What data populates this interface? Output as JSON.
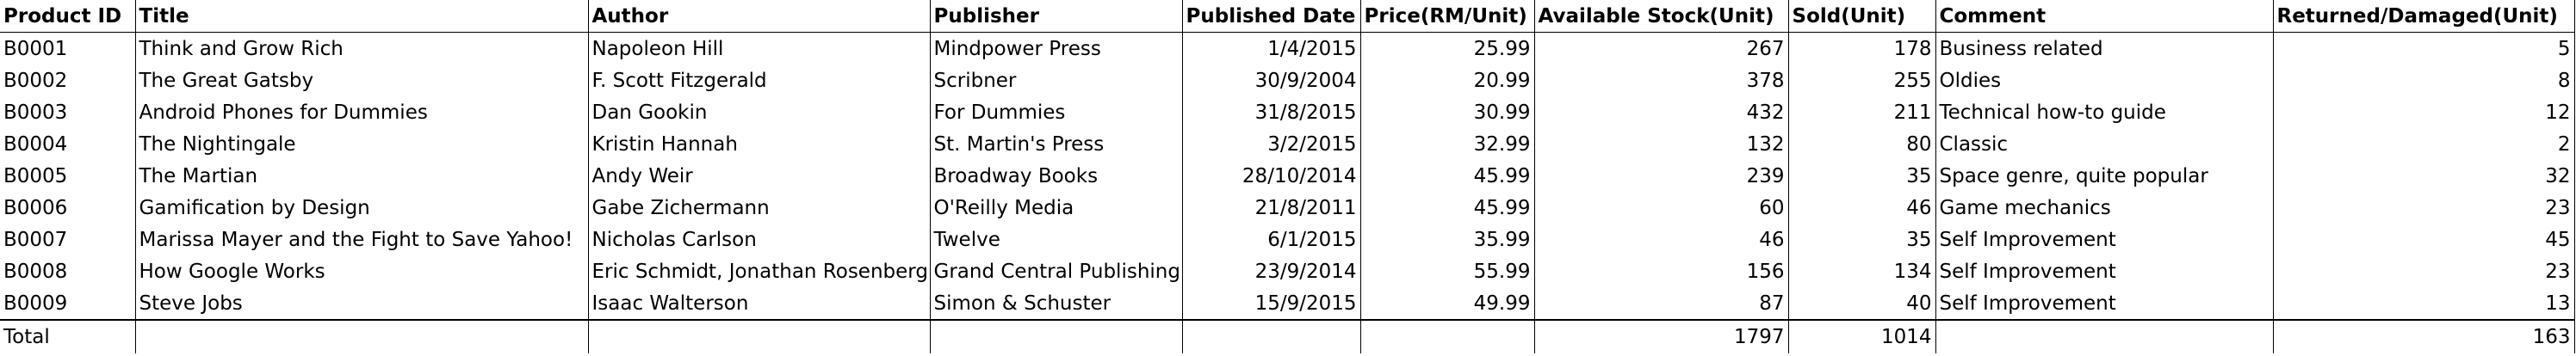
{
  "sheet": {
    "headers": [
      "Product ID",
      "Title",
      "Author",
      "Publisher",
      "Published Date",
      "Price(RM/Unit)",
      "Available Stock(Unit)",
      "Sold(Unit)",
      "Comment",
      "Returned/Damaged(Unit)"
    ],
    "rows": [
      [
        "B0001",
        "Think and Grow Rich",
        "Napoleon Hill",
        "Mindpower Press",
        "1/4/2015",
        "25.99",
        "267",
        "178",
        "Business related",
        "5"
      ],
      [
        "B0002",
        "The Great Gatsby",
        "F. Scott Fitzgerald",
        "Scribner",
        "30/9/2004",
        "20.99",
        "378",
        "255",
        "Oldies",
        "8"
      ],
      [
        "B0003",
        "Android Phones for Dummies",
        "Dan Gookin",
        "For Dummies",
        "31/8/2015",
        "30.99",
        "432",
        "211",
        "Technical how-to guide",
        "12"
      ],
      [
        "B0004",
        "The Nightingale",
        "Kristin Hannah",
        "St. Martin's Press",
        "3/2/2015",
        "32.99",
        "132",
        "80",
        "Classic",
        "2"
      ],
      [
        "B0005",
        "The Martian",
        "Andy Weir",
        "Broadway Books",
        "28/10/2014",
        "45.99",
        "239",
        "35",
        "Space genre, quite popular",
        "32"
      ],
      [
        "B0006",
        "Gamification by Design",
        "Gabe Zichermann",
        "O'Reilly Media",
        "21/8/2011",
        "45.99",
        "60",
        "46",
        "Game mechanics",
        "23"
      ],
      [
        "B0007",
        "Marissa Mayer and the Fight to Save Yahoo!",
        "Nicholas Carlson",
        "Twelve",
        "6/1/2015",
        "35.99",
        "46",
        "35",
        "Self Improvement",
        "45"
      ],
      [
        "B0008",
        "How Google Works",
        "Eric Schmidt, Jonathan Rosenberg",
        "Grand Central Publishing",
        "23/9/2014",
        "55.99",
        "156",
        "134",
        "Self Improvement",
        "23"
      ],
      [
        "B0009",
        "Steve Jobs",
        "Isaac Walterson",
        "Simon & Schuster",
        "15/9/2015",
        "49.99",
        "87",
        "40",
        "Self Improvement",
        "13"
      ]
    ],
    "total": [
      "Total",
      "",
      "",
      "",
      "",
      "",
      "1797",
      "1014",
      "",
      "163"
    ]
  }
}
